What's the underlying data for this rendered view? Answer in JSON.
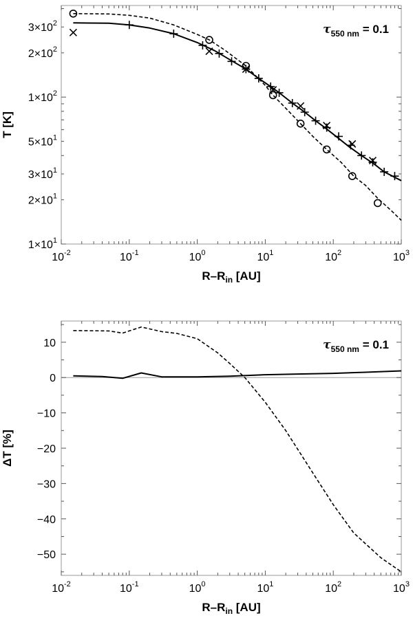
{
  "chart_data": [
    {
      "type": "line",
      "annotation": {
        "prefix": "τ",
        "subscript": "550 nm",
        "value": "= 0.1"
      },
      "xlabel": {
        "main": "R–R",
        "subscript": "in",
        "unit": " [AU]"
      },
      "ylabel": "T [K]",
      "xscale": "log",
      "yscale": "log",
      "xlim": [
        0.01,
        1000
      ],
      "ylim": [
        10,
        420
      ],
      "xticks": [
        {
          "value": 0.01,
          "base": "10",
          "exp": "-2"
        },
        {
          "value": 0.1,
          "base": "10",
          "exp": "-1"
        },
        {
          "value": 1,
          "base": "10",
          "exp": "0"
        },
        {
          "value": 10,
          "base": "10",
          "exp": "1"
        },
        {
          "value": 100,
          "base": "10",
          "exp": "2"
        },
        {
          "value": 1000,
          "base": "10",
          "exp": "3"
        }
      ],
      "yticks": [
        {
          "value": 10,
          "mant": "1×10",
          "exp": "1"
        },
        {
          "value": 20,
          "mant": "2×10",
          "exp": "1"
        },
        {
          "value": 30,
          "mant": "3×10",
          "exp": "1"
        },
        {
          "value": 50,
          "mant": "5×10",
          "exp": "1"
        },
        {
          "value": 100,
          "mant": "1×10",
          "exp": "2"
        },
        {
          "value": 200,
          "mant": "2×10",
          "exp": "2"
        },
        {
          "value": 300,
          "mant": "3×10",
          "exp": "2"
        }
      ],
      "series": [
        {
          "style": "solid",
          "marker": "plus",
          "x": [
            0.015,
            0.05,
            0.1,
            0.2,
            0.45,
            1,
            1.8,
            3,
            5.2,
            8,
            12,
            16,
            25,
            38,
            55,
            75,
            110,
            170,
            260,
            400,
            560,
            1000
          ],
          "y": [
            320,
            318,
            310,
            295,
            270,
            235,
            207,
            180,
            155,
            134,
            118,
            107,
            91,
            79,
            69,
            62,
            54,
            46,
            40,
            35,
            31,
            27
          ],
          "markers_x": [
            0.1,
            0.45,
            1.2,
            2.1,
            3.2,
            5.2,
            8,
            12,
            16,
            25,
            38,
            55,
            80,
            120,
            180,
            260,
            380,
            560,
            800
          ],
          "markers_y": [
            310,
            270,
            225,
            198,
            175,
            155,
            134,
            118,
            107,
            91,
            79,
            69,
            62,
            54,
            47,
            40,
            36,
            31,
            29
          ]
        },
        {
          "style": "dashed",
          "marker": "circle",
          "x": [
            0.015,
            0.05,
            0.1,
            0.2,
            0.45,
            1,
            1.5,
            2.5,
            5.2,
            10,
            13,
            20,
            33,
            50,
            80,
            130,
            200,
            300,
            450,
            700,
            1000
          ],
          "y": [
            370,
            368,
            360,
            345,
            310,
            267,
            245,
            210,
            163,
            120,
            103,
            84,
            66,
            54,
            44,
            36,
            29,
            25,
            20.5,
            17,
            14.5
          ],
          "markers_x": [
            0.015,
            1.5,
            5.2,
            13,
            33,
            80,
            190,
            450
          ],
          "markers_y": [
            370,
            245,
            163,
            103,
            66,
            44,
            29,
            19
          ]
        },
        {
          "style": "none",
          "marker": "cross",
          "markers_x": [
            0.015,
            1.5,
            5.2,
            13,
            33,
            80,
            190,
            380
          ],
          "markers_y": [
            275,
            205,
            155,
            112,
            87,
            64,
            48,
            37
          ]
        }
      ]
    },
    {
      "type": "line",
      "annotation": {
        "prefix": "τ",
        "subscript": "550 nm",
        "value": "= 0.1"
      },
      "xlabel": {
        "main": "R–R",
        "subscript": "in",
        "unit": " [AU]"
      },
      "ylabel": "ΔT [%]",
      "xscale": "log",
      "yscale": "linear",
      "xlim": [
        0.01,
        1000
      ],
      "ylim": [
        -56,
        16
      ],
      "grid": false,
      "zero_line": true,
      "xticks": [
        {
          "value": 0.01,
          "base": "10",
          "exp": "-2"
        },
        {
          "value": 0.1,
          "base": "10",
          "exp": "-1"
        },
        {
          "value": 1,
          "base": "10",
          "exp": "0"
        },
        {
          "value": 10,
          "base": "10",
          "exp": "1"
        },
        {
          "value": 100,
          "base": "10",
          "exp": "2"
        },
        {
          "value": 1000,
          "base": "10",
          "exp": "3"
        }
      ],
      "yticks": [
        {
          "value": 10,
          "label": "10"
        },
        {
          "value": 0,
          "label": "0"
        },
        {
          "value": -10,
          "label": "−10"
        },
        {
          "value": -20,
          "label": "−20"
        },
        {
          "value": -30,
          "label": "−30"
        },
        {
          "value": -40,
          "label": "−40"
        },
        {
          "value": -50,
          "label": "−50"
        }
      ],
      "series": [
        {
          "style": "solid",
          "x": [
            0.015,
            0.04,
            0.08,
            0.15,
            0.3,
            1,
            3,
            10,
            30,
            100,
            300,
            1000
          ],
          "y": [
            0.5,
            0.3,
            -0.2,
            1.3,
            0.2,
            0.2,
            0.4,
            0.8,
            1.0,
            1.2,
            1.5,
            1.9
          ]
        },
        {
          "style": "dashed",
          "x": [
            0.015,
            0.05,
            0.08,
            0.15,
            0.3,
            0.5,
            1,
            2,
            3,
            5,
            10,
            20,
            50,
            100,
            200,
            500,
            1000
          ],
          "y": [
            13.3,
            13.2,
            12.6,
            14.3,
            13.0,
            12.5,
            11.0,
            7.0,
            4.0,
            0.0,
            -7.0,
            -15.0,
            -27.0,
            -36.0,
            -44.0,
            -51.0,
            -55.0
          ]
        }
      ]
    }
  ]
}
